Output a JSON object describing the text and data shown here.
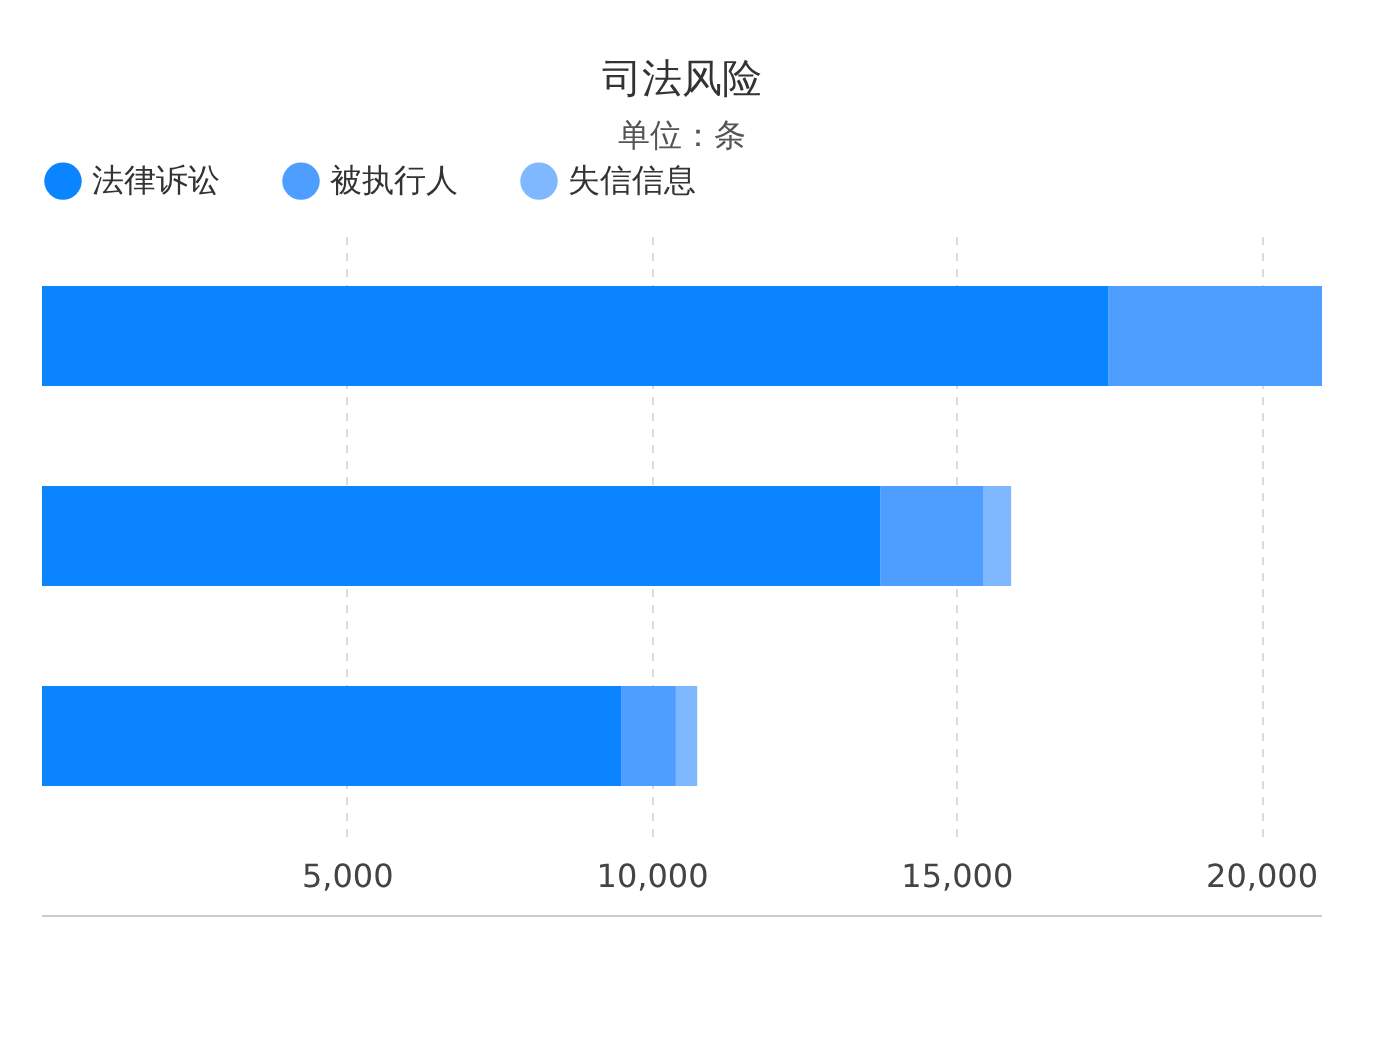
{
  "chart_data": {
    "type": "bar",
    "orientation": "horizontal",
    "stacked": true,
    "title": "司法风险",
    "subtitle": "单位：条",
    "categories": [
      null,
      null,
      null
    ],
    "series": [
      {
        "name": "法律诉讼",
        "color": "#0a84ff",
        "values": [
          17500,
          13750,
          9500
        ]
      },
      {
        "name": "被执行人",
        "color": "#4d9eff",
        "values": [
          3500,
          1700,
          900
        ]
      },
      {
        "name": "失信信息",
        "color": "#80b8ff",
        "values": [
          null,
          450,
          350
        ]
      }
    ],
    "xlim": [
      0,
      21000
    ],
    "xticks": [
      {
        "value": 5000,
        "label": "5,000"
      },
      {
        "value": 10000,
        "label": "10,000"
      },
      {
        "value": 15000,
        "label": "15,000"
      },
      {
        "value": 20000,
        "label": "20,000"
      }
    ],
    "grid": "x",
    "legend": "top",
    "tick_labels": "x"
  }
}
